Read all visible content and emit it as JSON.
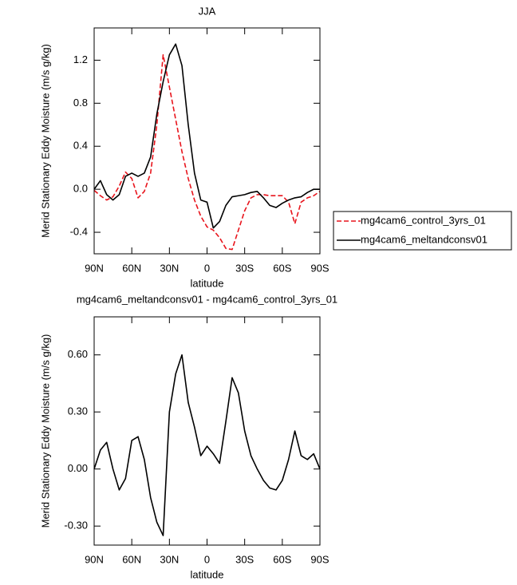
{
  "chart_data": [
    {
      "type": "line",
      "title": "JJA",
      "xlabel": "latitude",
      "ylabel": "Merid Stationary Eddy Moisture (m/s g/kg)",
      "x": [
        90,
        85,
        80,
        75,
        70,
        65,
        60,
        55,
        50,
        45,
        40,
        35,
        30,
        25,
        20,
        15,
        10,
        5,
        0,
        -5,
        -10,
        -15,
        -20,
        -25,
        -30,
        -35,
        -40,
        -45,
        -50,
        -55,
        -60,
        -65,
        -70,
        -75,
        -80,
        -85,
        -90
      ],
      "xlim": [
        90,
        -90
      ],
      "xticks": [
        {
          "value": 90,
          "label": "90N"
        },
        {
          "value": 60,
          "label": "60N"
        },
        {
          "value": 30,
          "label": "30N"
        },
        0,
        {
          "value": -30,
          "label": "30S"
        },
        {
          "value": -60,
          "label": "60S"
        },
        {
          "value": -90,
          "label": "90S"
        }
      ],
      "ylim": [
        -0.6,
        1.5
      ],
      "yticks": [
        -0.4,
        {
          "value": 0,
          "label": "0.0"
        },
        0.4,
        0.8,
        1.2
      ],
      "legend": "outside-right",
      "series": [
        {
          "name": "mg4cam6_control_3yrs_01",
          "color": "#e8141c",
          "line_style": "dashed",
          "values": [
            -0.01,
            -0.06,
            -0.1,
            -0.07,
            0.03,
            0.16,
            0.1,
            -0.08,
            -0.02,
            0.15,
            0.6,
            1.25,
            0.95,
            0.65,
            0.35,
            0.1,
            -0.1,
            -0.25,
            -0.35,
            -0.38,
            -0.45,
            -0.55,
            -0.56,
            -0.38,
            -0.2,
            -0.08,
            -0.05,
            -0.05,
            -0.06,
            -0.06,
            -0.06,
            -0.12,
            -0.32,
            -0.12,
            -0.08,
            -0.06,
            -0.02
          ]
        },
        {
          "name": "mg4cam6_meltandconsv01",
          "color": "#000000",
          "line_style": "solid",
          "values": [
            0,
            0.08,
            -0.05,
            -0.1,
            -0.05,
            0.12,
            0.15,
            0.12,
            0.15,
            0.3,
            0.7,
            1.0,
            1.25,
            1.35,
            1.15,
            0.6,
            0.15,
            -0.1,
            -0.12,
            -0.36,
            -0.3,
            -0.15,
            -0.07,
            -0.06,
            -0.05,
            -0.03,
            -0.02,
            -0.08,
            -0.15,
            -0.17,
            -0.13,
            -0.1,
            -0.08,
            -0.07,
            -0.03,
            0,
            0
          ]
        }
      ]
    },
    {
      "type": "line",
      "title": "mg4cam6_meltandconsv01 - mg4cam6_control_3yrs_01",
      "xlabel": "latitude",
      "ylabel": "Merid Stationary Eddy Moisture (m/s g/kg)",
      "x": [
        90,
        85,
        80,
        75,
        70,
        65,
        60,
        55,
        50,
        45,
        40,
        35,
        30,
        25,
        20,
        15,
        10,
        5,
        0,
        -5,
        -10,
        -15,
        -20,
        -25,
        -30,
        -35,
        -40,
        -45,
        -50,
        -55,
        -60,
        -65,
        -70,
        -75,
        -80,
        -85,
        -90
      ],
      "xlim": [
        90,
        -90
      ],
      "xticks": [
        {
          "value": 90,
          "label": "90N"
        },
        {
          "value": 60,
          "label": "60N"
        },
        {
          "value": 30,
          "label": "30N"
        },
        0,
        {
          "value": -30,
          "label": "30S"
        },
        {
          "value": -60,
          "label": "60S"
        },
        {
          "value": -90,
          "label": "90S"
        }
      ],
      "ylim": [
        -0.4,
        0.8
      ],
      "yticks": [
        {
          "value": -0.3,
          "label": "-0.30"
        },
        {
          "value": 0,
          "label": "0.00"
        },
        {
          "value": 0.3,
          "label": "0.30"
        },
        {
          "value": 0.6,
          "label": "0.60"
        }
      ],
      "color": "#000000",
      "values": [
        0,
        0.1,
        0.14,
        0,
        -0.11,
        -0.05,
        0.15,
        0.17,
        0.05,
        -0.15,
        -0.28,
        -0.35,
        0.3,
        0.5,
        0.6,
        0.35,
        0.22,
        0.07,
        0.12,
        0.08,
        0.03,
        0.25,
        0.48,
        0.4,
        0.2,
        0.07,
        0,
        -0.06,
        -0.1,
        -0.11,
        -0.06,
        0.05,
        0.2,
        0.07,
        0.05,
        0.08,
        0
      ]
    }
  ]
}
